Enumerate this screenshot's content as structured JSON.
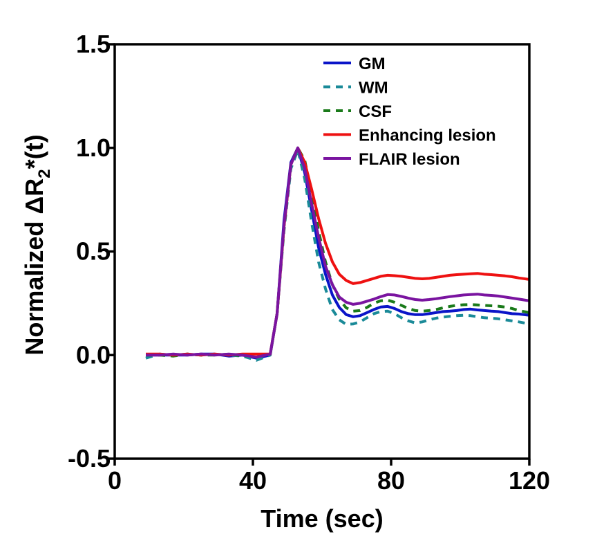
{
  "chart_data": {
    "type": "line",
    "title": "",
    "xlabel": "Time (sec)",
    "ylabel": {
      "prefix": "Normalized ΔR",
      "sub": "2",
      "suffix": "*(t)"
    },
    "xlim": [
      0,
      120
    ],
    "ylim": [
      -0.5,
      1.5
    ],
    "xticks": [
      0,
      40,
      80,
      120
    ],
    "yticks": [
      -0.5,
      0.0,
      0.5,
      1.0,
      1.5
    ],
    "xtick_labels": [
      "0",
      "40",
      "80",
      "120"
    ],
    "ytick_labels": [
      "-0.5",
      "0.0",
      "0.5",
      "1.0",
      "1.5"
    ],
    "grid": false,
    "legend_position": "top-right",
    "x": [
      9,
      13,
      17,
      21,
      25,
      29,
      33,
      37,
      41,
      45,
      47,
      49,
      51,
      53,
      55,
      57,
      59,
      61,
      63,
      65,
      67,
      69,
      71,
      73,
      75,
      77,
      79,
      81,
      83,
      85,
      87,
      89,
      91,
      93,
      95,
      97,
      99,
      101,
      103,
      105,
      107,
      109,
      111,
      113,
      115,
      117,
      120
    ],
    "series": [
      {
        "name": "GM",
        "color": "#0a14c8",
        "dash": "solid",
        "values": [
          0.0,
          0.0,
          0.0,
          0.0,
          0.005,
          0.005,
          -0.005,
          0.0,
          -0.015,
          0.0,
          0.2,
          0.65,
          0.93,
          1.0,
          0.88,
          0.7,
          0.52,
          0.39,
          0.29,
          0.23,
          0.195,
          0.185,
          0.19,
          0.205,
          0.22,
          0.232,
          0.235,
          0.225,
          0.21,
          0.2,
          0.195,
          0.195,
          0.2,
          0.205,
          0.21,
          0.212,
          0.215,
          0.22,
          0.222,
          0.218,
          0.215,
          0.212,
          0.21,
          0.205,
          0.2,
          0.198,
          0.192
        ]
      },
      {
        "name": "WM",
        "color": "#1a8a98",
        "dash": "dashed",
        "values": [
          -0.015,
          0.005,
          0.0,
          0.005,
          0.0,
          0.005,
          0.0,
          -0.005,
          -0.025,
          0.0,
          0.2,
          0.6,
          0.9,
          0.99,
          0.85,
          0.64,
          0.45,
          0.32,
          0.22,
          0.17,
          0.148,
          0.15,
          0.16,
          0.18,
          0.2,
          0.21,
          0.212,
          0.2,
          0.18,
          0.165,
          0.155,
          0.16,
          0.17,
          0.178,
          0.183,
          0.187,
          0.19,
          0.192,
          0.19,
          0.185,
          0.18,
          0.178,
          0.175,
          0.17,
          0.165,
          0.16,
          0.15
        ]
      },
      {
        "name": "CSF",
        "color": "#1a7a1a",
        "dash": "dashed",
        "values": [
          0.0,
          0.0,
          -0.005,
          0.005,
          0.0,
          0.0,
          0.005,
          -0.005,
          0.0,
          0.005,
          0.2,
          0.62,
          0.92,
          1.0,
          0.94,
          0.78,
          0.6,
          0.45,
          0.34,
          0.27,
          0.228,
          0.212,
          0.215,
          0.23,
          0.25,
          0.262,
          0.265,
          0.255,
          0.24,
          0.225,
          0.215,
          0.212,
          0.215,
          0.22,
          0.228,
          0.235,
          0.24,
          0.243,
          0.244,
          0.242,
          0.24,
          0.238,
          0.236,
          0.232,
          0.225,
          0.215,
          0.205
        ]
      },
      {
        "name": "Enhancing lesion",
        "color": "#ee1111",
        "dash": "solid",
        "values": [
          0.005,
          0.005,
          0.0,
          0.005,
          0.0,
          0.005,
          0.0,
          0.005,
          0.005,
          0.005,
          0.2,
          0.62,
          0.92,
          1.0,
          0.93,
          0.8,
          0.66,
          0.54,
          0.45,
          0.39,
          0.36,
          0.345,
          0.35,
          0.36,
          0.37,
          0.38,
          0.385,
          0.383,
          0.38,
          0.375,
          0.37,
          0.368,
          0.37,
          0.375,
          0.38,
          0.385,
          0.388,
          0.39,
          0.392,
          0.394,
          0.39,
          0.388,
          0.385,
          0.382,
          0.378,
          0.372,
          0.365
        ]
      },
      {
        "name": "FLAIR lesion",
        "color": "#7a14a0",
        "dash": "solid",
        "values": [
          0.0,
          0.0,
          0.005,
          0.0,
          0.005,
          0.0,
          0.005,
          0.0,
          -0.01,
          0.005,
          0.2,
          0.63,
          0.92,
          1.0,
          0.9,
          0.73,
          0.57,
          0.43,
          0.34,
          0.28,
          0.255,
          0.245,
          0.25,
          0.26,
          0.27,
          0.282,
          0.292,
          0.29,
          0.283,
          0.275,
          0.268,
          0.265,
          0.268,
          0.272,
          0.277,
          0.282,
          0.286,
          0.29,
          0.292,
          0.294,
          0.29,
          0.288,
          0.285,
          0.28,
          0.275,
          0.27,
          0.262
        ]
      }
    ]
  }
}
